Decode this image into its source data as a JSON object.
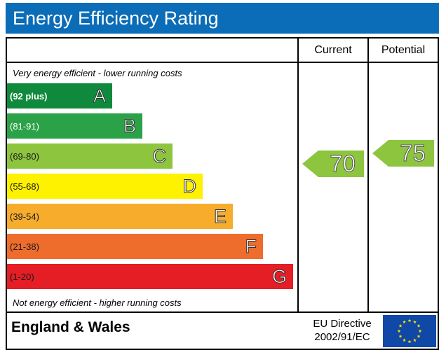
{
  "title": "Energy Efficiency Rating",
  "columns": {
    "current": "Current",
    "potential": "Potential"
  },
  "top_note": "Very energy efficient - lower running costs",
  "bottom_note": "Not energy efficient - higher running costs",
  "bands": [
    {
      "range": "(92 plus)",
      "letter": "A",
      "color": "#0f8a3c",
      "text_color": "#ffffff"
    },
    {
      "range": "(81-91)",
      "letter": "B",
      "color": "#2ca248",
      "text_color": "#ffffff"
    },
    {
      "range": "(69-80)",
      "letter": "C",
      "color": "#8dc53f",
      "text_color": "#1a1a1a"
    },
    {
      "range": "(55-68)",
      "letter": "D",
      "color": "#fff200",
      "text_color": "#1a1a1a"
    },
    {
      "range": "(39-54)",
      "letter": "E",
      "color": "#f7ac2c",
      "text_color": "#1a1a1a"
    },
    {
      "range": "(21-38)",
      "letter": "F",
      "color": "#ee6c2c",
      "text_color": "#1a1a1a"
    },
    {
      "range": "(1-20)",
      "letter": "G",
      "color": "#e51d24",
      "text_color": "#1a1a1a"
    }
  ],
  "current": {
    "value": "70",
    "color": "#8dc53f"
  },
  "potential": {
    "value": "75",
    "color": "#8dc53f"
  },
  "footer": {
    "region": "England & Wales",
    "directive_line1": "EU Directive",
    "directive_line2": "2002/91/EC"
  },
  "colors": {
    "title_bar": "#0b6cb7",
    "eu_flag": "#0f48a6",
    "eu_stars": "#ffdd00"
  }
}
